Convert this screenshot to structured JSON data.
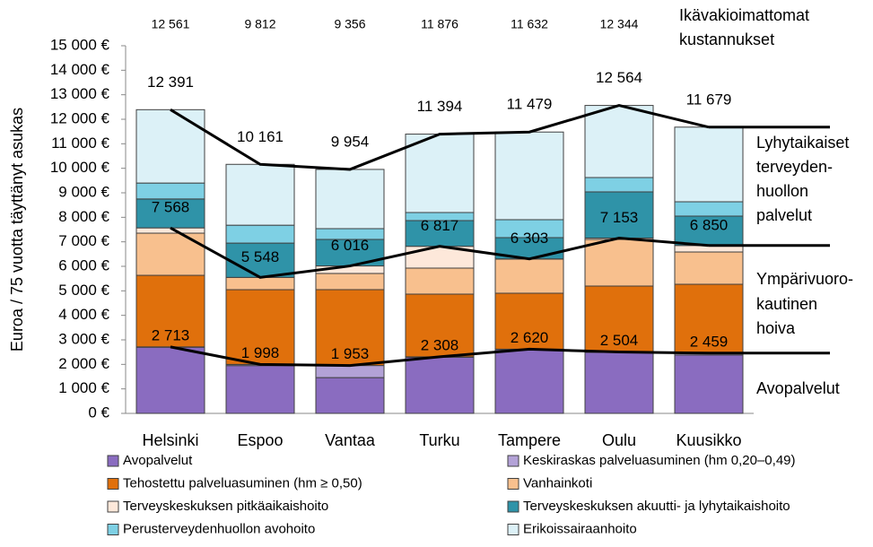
{
  "chart_data": {
    "type": "stacked_bar",
    "y_label": "Euroa / 75 vuotta täyttänyt asukas",
    "categories": [
      "Helsinki",
      "Espoo",
      "Vantaa",
      "Turku",
      "Tampere",
      "Oulu",
      "Kuusikko"
    ],
    "ylim": [
      0,
      15000
    ],
    "yticks": [
      {
        "value": 0,
        "label": "0 €"
      },
      {
        "value": 1000,
        "label": "1 000 €"
      },
      {
        "value": 2000,
        "label": "2 000 €"
      },
      {
        "value": 3000,
        "label": "3 000 €"
      },
      {
        "value": 4000,
        "label": "4 000 €"
      },
      {
        "value": 5000,
        "label": "5 000 €"
      },
      {
        "value": 6000,
        "label": "6 000 €"
      },
      {
        "value": 7000,
        "label": "7 000 €"
      },
      {
        "value": 8000,
        "label": "8 000 €"
      },
      {
        "value": 9000,
        "label": "9 000 €"
      },
      {
        "value": 10000,
        "label": "10 000 €"
      },
      {
        "value": 11000,
        "label": "11 000 €"
      },
      {
        "value": 12000,
        "label": "12 000 €"
      },
      {
        "value": 13000,
        "label": "13 000 €"
      },
      {
        "value": 14000,
        "label": "14 000 €"
      },
      {
        "value": 15000,
        "label": "15 000 €"
      }
    ],
    "series": [
      {
        "name": "Avopalvelut",
        "color": "#8a6cc0",
        "values": [
          2700,
          1950,
          1460,
          2290,
          2600,
          2490,
          2380
        ]
      },
      {
        "name": "Keskiraskas palveluasuminen (hm 0,20–0,49)",
        "color": "#b3a2d7",
        "values": [
          13,
          48,
          493,
          18,
          20,
          14,
          79
        ]
      },
      {
        "name": "Tehostettu palveluasuminen (hm ≥ 0,50)",
        "color": "#e0700c",
        "values": [
          2920,
          3050,
          3096,
          2558,
          2283,
          2691,
          2809
        ]
      },
      {
        "name": "Vanhainkoti",
        "color": "#f8c08e",
        "values": [
          1720,
          500,
          660,
          1061,
          1390,
          1903,
          1317
        ]
      },
      {
        "name": "Terveyskeskuksen pitkäaikaishoito",
        "color": "#fde8da",
        "values": [
          215,
          0,
          307,
          890,
          10,
          55,
          265
        ]
      },
      {
        "name": "Terveyskeskuksen akuutti- ja lyhytaikaishoito",
        "color": "#2f93a8",
        "values": [
          1180,
          1400,
          1082,
          1049,
          868,
          1884,
          1199
        ]
      },
      {
        "name": "Perusterveydenhuollon avohoito",
        "color": "#7ed0e4",
        "values": [
          650,
          730,
          439,
          329,
          732,
          585,
          585
        ]
      },
      {
        "name": "Erikoissairaanhoito",
        "color": "#dcf1f7",
        "values": [
          2993,
          2483,
          2417,
          3199,
          3576,
          2942,
          3045
        ]
      }
    ],
    "lines": [
      {
        "name": [
          "Avopalvelut"
        ],
        "values": [
          2713,
          1998,
          1953,
          2308,
          2620,
          2504,
          2459
        ],
        "value_labels": [
          "2 713",
          "1 998",
          "1 953",
          "2 308",
          "2 620",
          "2 504",
          "2 459"
        ]
      },
      {
        "name": [
          "Ympärivuoro-",
          "kautinen",
          "hoiva"
        ],
        "values": [
          7568,
          5548,
          6016,
          6817,
          6303,
          7153,
          6850
        ],
        "value_labels": [
          "7 568",
          "5 548",
          "6 016",
          "6 817",
          "6 303",
          "7 153",
          "6 850"
        ]
      },
      {
        "name": [
          "Lyhytaikaiset",
          "terveyden-",
          "huollon",
          "palvelut"
        ],
        "values": [
          12391,
          10161,
          9954,
          11394,
          11479,
          12564,
          11679
        ],
        "value_labels": [
          "12 391",
          "10 161",
          "9 954",
          "11 394",
          "11 479",
          "12 564",
          "11 679"
        ]
      }
    ],
    "unadjusted": {
      "name": [
        "Ikävakioimattomat",
        "kustannukset"
      ],
      "values": [
        12561,
        9812,
        9356,
        11876,
        11632,
        12344
      ],
      "value_labels": [
        "12 561",
        "9 812",
        "9 356",
        "11 876",
        "11 632",
        "12 344"
      ]
    }
  }
}
